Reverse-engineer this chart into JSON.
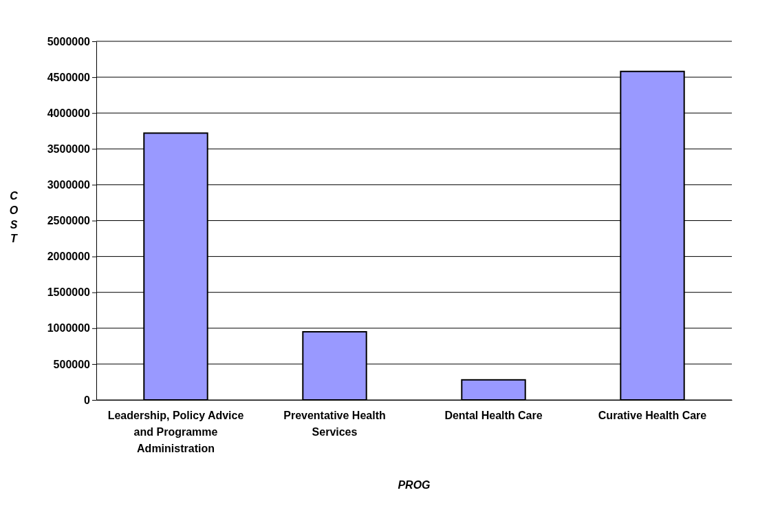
{
  "chart_data": {
    "type": "bar",
    "xlabel": "PROG",
    "ylabel": "COST",
    "categories": [
      "Leadership, Policy Advice and Programme Administration",
      "Preventative Health Services",
      "Dental Health Care",
      "Curative Health Care"
    ],
    "values": [
      3720000,
      950000,
      280000,
      4580000
    ],
    "color": "#9999ff",
    "ylim": [
      0,
      5000000
    ],
    "yticks": [
      0,
      500000,
      1000000,
      1500000,
      2000000,
      2500000,
      3000000,
      3500000,
      4000000,
      4500000,
      5000000
    ],
    "grid": "y"
  }
}
